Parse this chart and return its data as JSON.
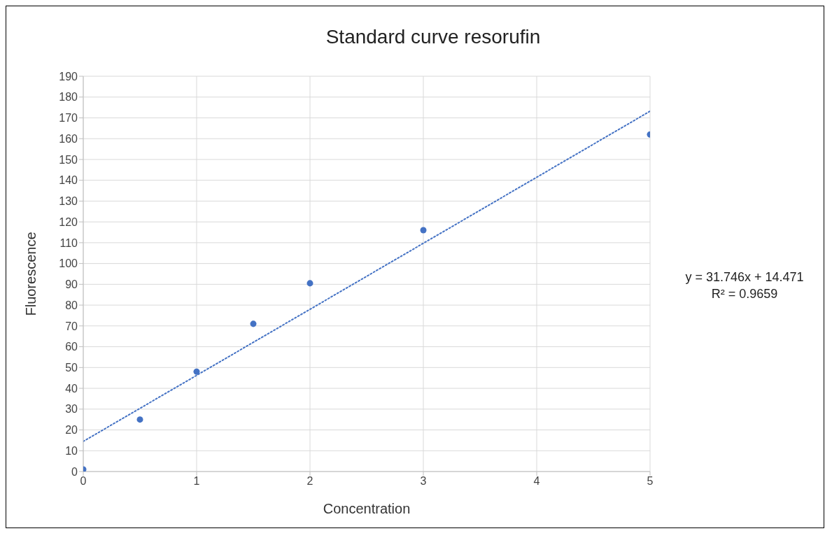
{
  "chart_data": {
    "type": "scatter",
    "title": "Standard curve resorufin",
    "xlabel": "Concentration",
    "ylabel": "Fluorescence",
    "series": [
      {
        "color": "#4472c4",
        "x": [
          0,
          0.5,
          1,
          1.5,
          2,
          3,
          5
        ],
        "values": [
          1,
          25,
          48,
          71,
          90.5,
          116,
          162
        ],
        "marker": "circle"
      },
      {
        "type": "line",
        "color": "#4472c4",
        "x": [
          0,
          5
        ],
        "values": [
          14.5,
          173.2
        ],
        "line_style": "dotted"
      }
    ],
    "xlim": [
      0,
      5
    ],
    "xticks": [
      0,
      1,
      2,
      3,
      4,
      5
    ],
    "ylim": [
      0,
      190
    ],
    "yticks": [
      0,
      10,
      20,
      30,
      40,
      50,
      60,
      70,
      80,
      90,
      100,
      110,
      120,
      130,
      140,
      150,
      160,
      170,
      180,
      190
    ],
    "grid": true,
    "annotations": [
      "y = 31.746x + 14.471",
      "R² = 0.9659"
    ]
  }
}
